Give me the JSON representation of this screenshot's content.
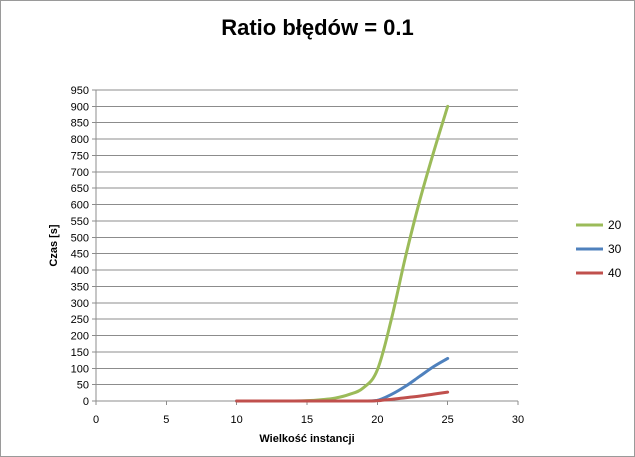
{
  "chart_data": {
    "type": "line",
    "title": "Ratio błędów = 0.1",
    "xlabel": "Wielkość instancji",
    "ylabel": "Czas [s]",
    "xlim": [
      0,
      30
    ],
    "ylim": [
      0,
      950
    ],
    "xticks": [
      0,
      5,
      10,
      15,
      20,
      25,
      30
    ],
    "yticks": [
      0,
      50,
      100,
      150,
      200,
      250,
      300,
      350,
      400,
      450,
      500,
      550,
      600,
      650,
      700,
      750,
      800,
      850,
      900,
      950
    ],
    "grid": "horizontal",
    "legend_position": "right",
    "series": [
      {
        "name": "20",
        "color": "#9BBB59",
        "x": [
          10,
          11,
          12,
          13,
          14,
          15,
          16,
          17,
          18,
          19,
          20,
          21,
          22,
          23,
          24,
          25
        ],
        "y": [
          0,
          0,
          0,
          0,
          0,
          1,
          4,
          9,
          20,
          40,
          95,
          250,
          440,
          610,
          760,
          900
        ]
      },
      {
        "name": "30",
        "color": "#4F81BD",
        "x": [
          10,
          15,
          19,
          20,
          21,
          22,
          23,
          24,
          25
        ],
        "y": [
          0,
          0,
          0,
          2,
          20,
          45,
          75,
          105,
          130
        ]
      },
      {
        "name": "40",
        "color": "#C0504D",
        "x": [
          10,
          15,
          19,
          20,
          21,
          22,
          23,
          24,
          25
        ],
        "y": [
          0,
          0,
          0,
          1,
          5,
          10,
          15,
          21,
          27
        ]
      }
    ]
  }
}
